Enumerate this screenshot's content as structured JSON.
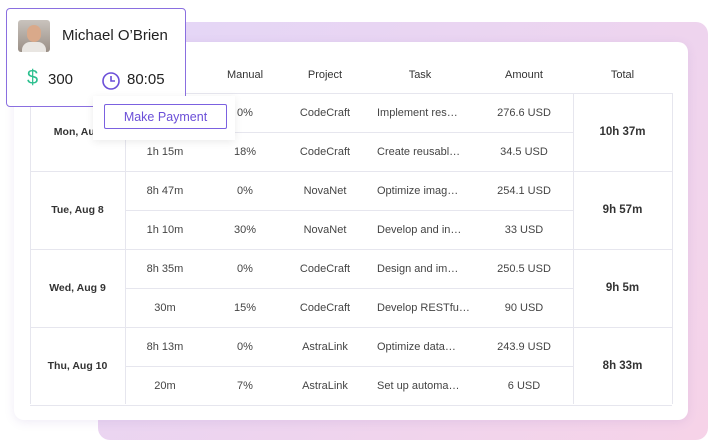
{
  "profile": {
    "name": "Michael O’Brien",
    "currency": "$",
    "balance": "300",
    "hours": "80:05",
    "button": "Make Payment"
  },
  "table": {
    "headers": [
      "Manual",
      "Project",
      "Task",
      "Amount",
      "Total"
    ],
    "groups": [
      {
        "date": "Mon, Aug",
        "total": "10h 37m",
        "rows": [
          {
            "manual": "0%",
            "project": "CodeCraft",
            "task": "Implement res…",
            "amount": "276.6 USD"
          },
          {
            "time": "1h 15m",
            "manual": "18%",
            "project": "CodeCraft",
            "task": "Create reusabl…",
            "amount": "34.5 USD"
          }
        ]
      },
      {
        "date": "Tue, Aug 8",
        "total": "9h 57m",
        "rows": [
          {
            "time": "8h 47m",
            "manual": "0%",
            "project": "NovaNet",
            "task": "Optimize imag…",
            "amount": "254.1 USD"
          },
          {
            "time": "1h 10m",
            "manual": "30%",
            "project": "NovaNet",
            "task": "Develop and in…",
            "amount": "33 USD"
          }
        ]
      },
      {
        "date": "Wed, Aug 9",
        "total": "9h 5m",
        "rows": [
          {
            "time": "8h 35m",
            "manual": "0%",
            "project": "CodeCraft",
            "task": "Design and im…",
            "amount": "250.5 USD"
          },
          {
            "time": "30m",
            "manual": "15%",
            "project": "CodeCraft",
            "task": "Develop RESTfu…",
            "amount": "90 USD"
          }
        ]
      },
      {
        "date": "Thu, Aug 10",
        "total": "8h 33m",
        "rows": [
          {
            "time": "8h 13m",
            "manual": "0%",
            "project": "AstraLink",
            "task": "Optimize data…",
            "amount": "243.9 USD"
          },
          {
            "time": "20m",
            "manual": "7%",
            "project": "AstraLink",
            "task": "Set up automa…",
            "amount": "6 USD"
          }
        ]
      }
    ]
  }
}
